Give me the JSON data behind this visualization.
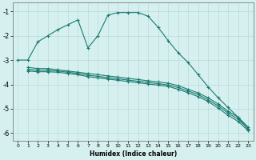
{
  "xlabel": "Humidex (Indice chaleur)",
  "bg_color": "#d6f0f0",
  "grid_color": "#b8dada",
  "line_color": "#1a7a6e",
  "xlim": [
    -0.5,
    23.5
  ],
  "ylim": [
    -6.3,
    -0.65
  ],
  "xticks": [
    0,
    1,
    2,
    3,
    4,
    5,
    6,
    7,
    8,
    9,
    10,
    11,
    12,
    13,
    14,
    15,
    16,
    17,
    18,
    19,
    20,
    21,
    22,
    23
  ],
  "yticks": [
    -6,
    -5,
    -4,
    -3,
    -2,
    -1
  ],
  "line1_x": [
    0,
    1,
    2,
    3,
    4,
    5,
    6,
    7,
    8,
    9,
    10,
    11,
    12,
    13,
    14,
    15,
    16,
    17,
    18,
    19,
    20,
    21,
    22,
    23
  ],
  "line1_y": [
    -3.0,
    -3.0,
    -2.25,
    -2.0,
    -1.75,
    -1.55,
    -1.35,
    -2.5,
    -2.0,
    -1.15,
    -1.05,
    -1.05,
    -1.05,
    -1.2,
    -1.65,
    -2.2,
    -2.7,
    -3.1,
    -3.6,
    -4.1,
    -4.55,
    -4.95,
    -5.35,
    -5.85
  ],
  "line2_x": [
    1,
    2,
    3,
    4,
    5,
    6,
    7,
    8,
    9,
    10,
    11,
    12,
    13,
    14,
    15,
    16,
    17,
    18,
    19,
    20,
    21,
    22,
    23
  ],
  "line2_y": [
    -3.3,
    -3.35,
    -3.35,
    -3.4,
    -3.45,
    -3.5,
    -3.55,
    -3.6,
    -3.65,
    -3.7,
    -3.75,
    -3.8,
    -3.85,
    -3.9,
    -3.95,
    -4.05,
    -4.2,
    -4.35,
    -4.55,
    -4.8,
    -5.1,
    -5.35,
    -5.75
  ],
  "line3_x": [
    1,
    2,
    3,
    4,
    5,
    6,
    7,
    8,
    9,
    10,
    11,
    12,
    13,
    14,
    15,
    16,
    17,
    18,
    19,
    20,
    21,
    22,
    23
  ],
  "line3_y": [
    -3.38,
    -3.42,
    -3.42,
    -3.45,
    -3.5,
    -3.55,
    -3.62,
    -3.67,
    -3.72,
    -3.77,
    -3.82,
    -3.87,
    -3.92,
    -3.97,
    -4.02,
    -4.13,
    -4.27,
    -4.42,
    -4.63,
    -4.88,
    -5.18,
    -5.43,
    -5.82
  ],
  "line4_x": [
    1,
    2,
    3,
    4,
    5,
    6,
    7,
    8,
    9,
    10,
    11,
    12,
    13,
    14,
    15,
    16,
    17,
    18,
    19,
    20,
    21,
    22,
    23
  ],
  "line4_y": [
    -3.45,
    -3.48,
    -3.48,
    -3.5,
    -3.55,
    -3.6,
    -3.68,
    -3.73,
    -3.78,
    -3.83,
    -3.88,
    -3.93,
    -3.98,
    -4.03,
    -4.08,
    -4.2,
    -4.34,
    -4.5,
    -4.7,
    -4.97,
    -5.27,
    -5.52,
    -5.9
  ]
}
